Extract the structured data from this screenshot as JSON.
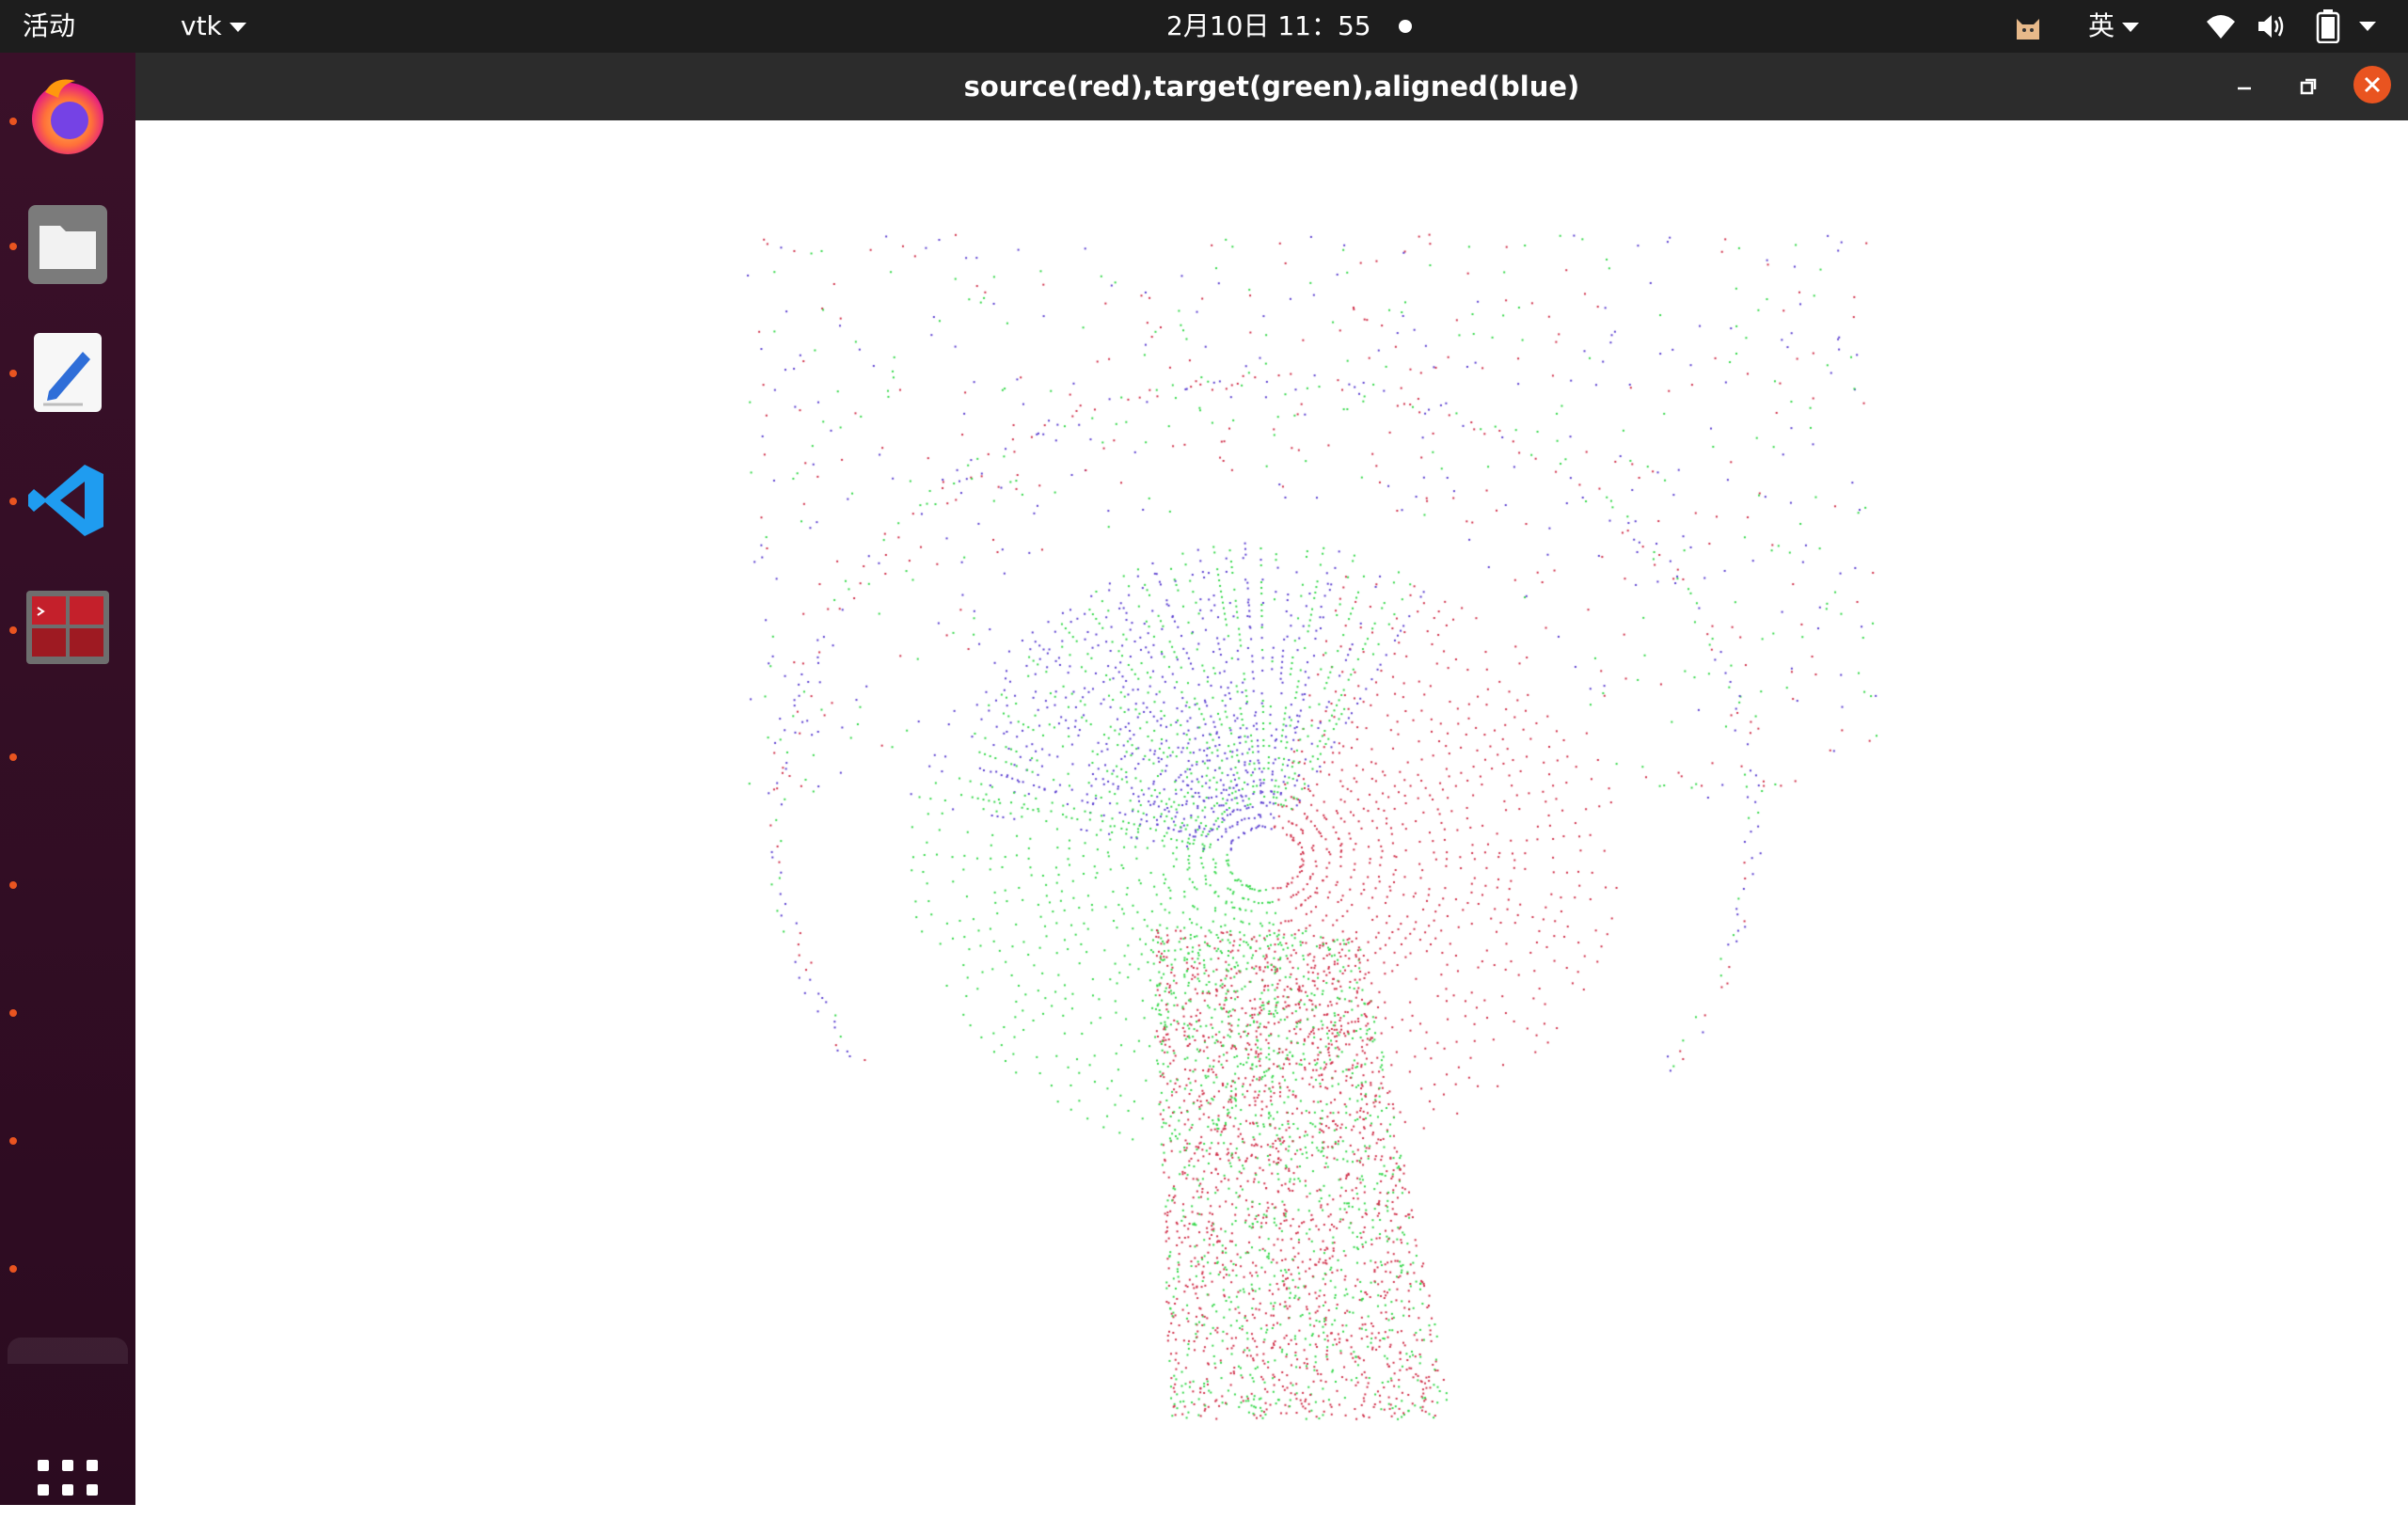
{
  "topbar": {
    "activities": "活动",
    "app_menu": "vtk",
    "clock": "2月10日  11：55",
    "input_method": "英",
    "icons": [
      "cat-icon",
      "wifi-icon",
      "volume-icon",
      "battery-icon",
      "chevron-down-icon"
    ]
  },
  "dock": {
    "apps": [
      "firefox",
      "files",
      "text-editor",
      "vscode",
      "terminal-grid"
    ],
    "accent": "#e95420"
  },
  "window": {
    "title": "source(red),target(green),aligned(blue)",
    "controls": [
      "minimize",
      "maximize",
      "close"
    ]
  },
  "viewport": {
    "background": "#ffffff",
    "series_colors": {
      "source": "#d0304a",
      "target": "#35d84a",
      "aligned": "#5b3fd0"
    }
  }
}
